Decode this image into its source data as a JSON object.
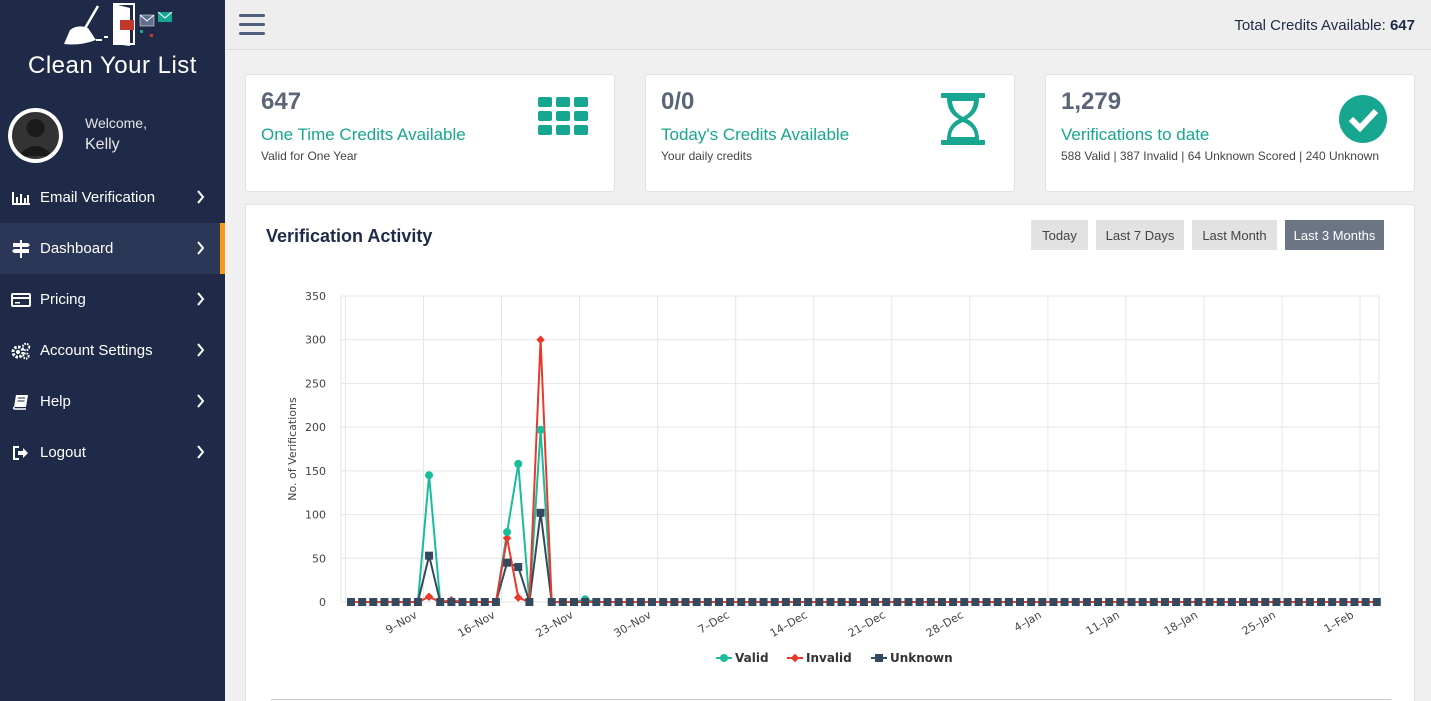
{
  "sidebar": {
    "logo_text": "Clean Your List",
    "welcome": "Welcome,",
    "username": "Kelly",
    "items": [
      {
        "label": "Email Verification",
        "icon": "bar-chart-icon"
      },
      {
        "label": "Dashboard",
        "icon": "signpost-icon",
        "active": true
      },
      {
        "label": "Pricing",
        "icon": "credit-card-icon"
      },
      {
        "label": "Account Settings",
        "icon": "gears-icon"
      },
      {
        "label": "Help",
        "icon": "book-icon"
      },
      {
        "label": "Logout",
        "icon": "sign-out-icon"
      }
    ]
  },
  "topbar": {
    "credits_label": "Total Credits Available: ",
    "credits_value": "647"
  },
  "cards": [
    {
      "value": "647",
      "title": "One Time Credits Available",
      "subtitle": "Valid for One Year",
      "icon": "grid-icon"
    },
    {
      "value": "0/0",
      "title": "Today's Credits Available",
      "subtitle": "Your daily credits",
      "icon": "hourglass-icon"
    },
    {
      "value": "1,279",
      "title": "Verifications to date",
      "subtitle": "588 Valid | 387 Invalid | 64 Unknown Scored | 240 Unknown",
      "icon": "check-circle-icon"
    }
  ],
  "activity": {
    "title": "Verification Activity",
    "ranges": [
      "Today",
      "Last 7 Days",
      "Last Month",
      "Last 3 Months"
    ],
    "active_range": "Last 3 Months"
  },
  "colors": {
    "sidebar_bg": "#1e2a47",
    "accent_teal": "#17a68f",
    "active_marker": "#f39c12",
    "valid": "#1abc9c",
    "invalid": "#e8392b",
    "unknown": "#34495e"
  },
  "chart_data": {
    "type": "line",
    "ylabel": "No. of Verifications",
    "xlabel": "",
    "ylim": [
      0,
      350
    ],
    "yticks": [
      0,
      50,
      100,
      150,
      200,
      250,
      300,
      350
    ],
    "x_tick_labels": [
      "9–Nov",
      "16–Nov",
      "23–Nov",
      "30–Nov",
      "7–Dec",
      "14–Dec",
      "21–Dec",
      "28–Dec",
      "4–Jan",
      "11–Jan",
      "18–Jan",
      "25–Jan",
      "1–Feb"
    ],
    "x_dates": [
      "3-Nov",
      "4-Nov",
      "5-Nov",
      "6-Nov",
      "7-Nov",
      "8-Nov",
      "9-Nov",
      "10-Nov",
      "11-Nov",
      "12-Nov",
      "13-Nov",
      "14-Nov",
      "15-Nov",
      "16-Nov",
      "17-Nov",
      "18-Nov",
      "19-Nov",
      "20-Nov",
      "21-Nov",
      "22-Nov",
      "23-Nov",
      "24-Nov",
      "25-Nov",
      "26-Nov",
      "27-Nov",
      "28-Nov",
      "29-Nov",
      "30-Nov",
      "1-Dec",
      "2-Dec",
      "3-Dec",
      "4-Dec",
      "5-Dec",
      "6-Dec",
      "7-Dec",
      "8-Dec",
      "9-Dec",
      "10-Dec",
      "11-Dec",
      "12-Dec",
      "13-Dec",
      "14-Dec",
      "15-Dec",
      "16-Dec",
      "17-Dec",
      "18-Dec",
      "19-Dec",
      "20-Dec",
      "21-Dec",
      "22-Dec",
      "23-Dec",
      "24-Dec",
      "25-Dec",
      "26-Dec",
      "27-Dec",
      "28-Dec",
      "29-Dec",
      "30-Dec",
      "31-Dec",
      "1-Jan",
      "2-Jan",
      "3-Jan",
      "4-Jan",
      "5-Jan",
      "6-Jan",
      "7-Jan",
      "8-Jan",
      "9-Jan",
      "10-Jan",
      "11-Jan",
      "12-Jan",
      "13-Jan",
      "14-Jan",
      "15-Jan",
      "16-Jan",
      "17-Jan",
      "18-Jan",
      "19-Jan",
      "20-Jan",
      "21-Jan",
      "22-Jan",
      "23-Jan",
      "24-Jan",
      "25-Jan",
      "26-Jan",
      "27-Jan",
      "28-Jan",
      "29-Jan",
      "30-Jan",
      "31-Jan",
      "1-Feb",
      "2-Feb",
      "3-Feb"
    ],
    "series": [
      {
        "name": "Valid",
        "nonzero": {
          "10-Nov": 145,
          "17-Nov": 80,
          "18-Nov": 158,
          "20-Nov": 197,
          "24-Nov": 3
        }
      },
      {
        "name": "Invalid",
        "nonzero": {
          "10-Nov": 6,
          "12-Nov": 2,
          "17-Nov": 73,
          "18-Nov": 5,
          "20-Nov": 300
        }
      },
      {
        "name": "Unknown",
        "nonzero": {
          "10-Nov": 53,
          "17-Nov": 45,
          "18-Nov": 40,
          "20-Nov": 102
        }
      }
    ],
    "legend": "bottom-center",
    "grid": true
  }
}
